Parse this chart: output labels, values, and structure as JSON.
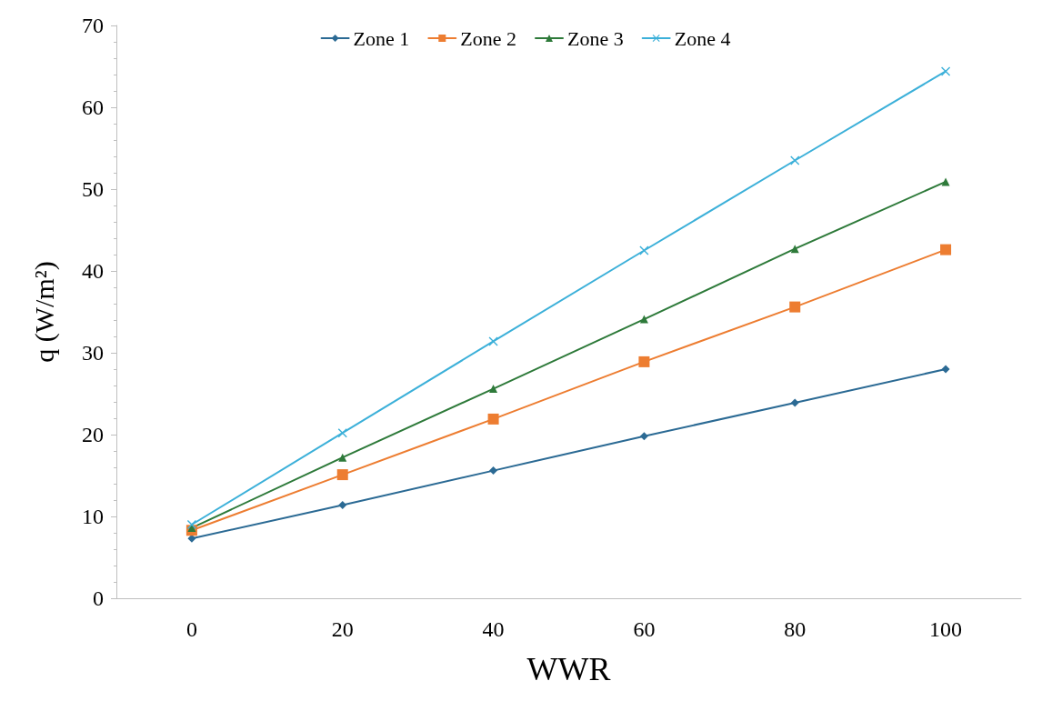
{
  "chart_data": {
    "type": "line",
    "xlabel": "WWR",
    "ylabel": "q (W/m²)",
    "categories": [
      "0",
      "20",
      "40",
      "60",
      "80",
      "100"
    ],
    "series": [
      {
        "name": "Zone 1",
        "color": "#2b6a94",
        "marker": "diamond",
        "values": [
          7.3,
          11.4,
          15.6,
          19.8,
          23.9,
          28.0
        ]
      },
      {
        "name": "Zone 2",
        "color": "#ed7d31",
        "marker": "square",
        "values": [
          8.3,
          15.1,
          21.9,
          28.9,
          35.6,
          42.6
        ]
      },
      {
        "name": "Zone 3",
        "color": "#2e7a3a",
        "marker": "triangle",
        "values": [
          8.6,
          17.2,
          25.6,
          34.1,
          42.7,
          50.9
        ]
      },
      {
        "name": "Zone 4",
        "color": "#3cb0d9",
        "marker": "cross",
        "values": [
          9.0,
          20.2,
          31.4,
          42.5,
          53.5,
          64.4
        ]
      }
    ],
    "ylim": [
      0,
      70
    ],
    "yticks": [
      0,
      10,
      20,
      30,
      40,
      50,
      60,
      70
    ],
    "grid": false,
    "legend": "top",
    "line_style": "solid"
  }
}
